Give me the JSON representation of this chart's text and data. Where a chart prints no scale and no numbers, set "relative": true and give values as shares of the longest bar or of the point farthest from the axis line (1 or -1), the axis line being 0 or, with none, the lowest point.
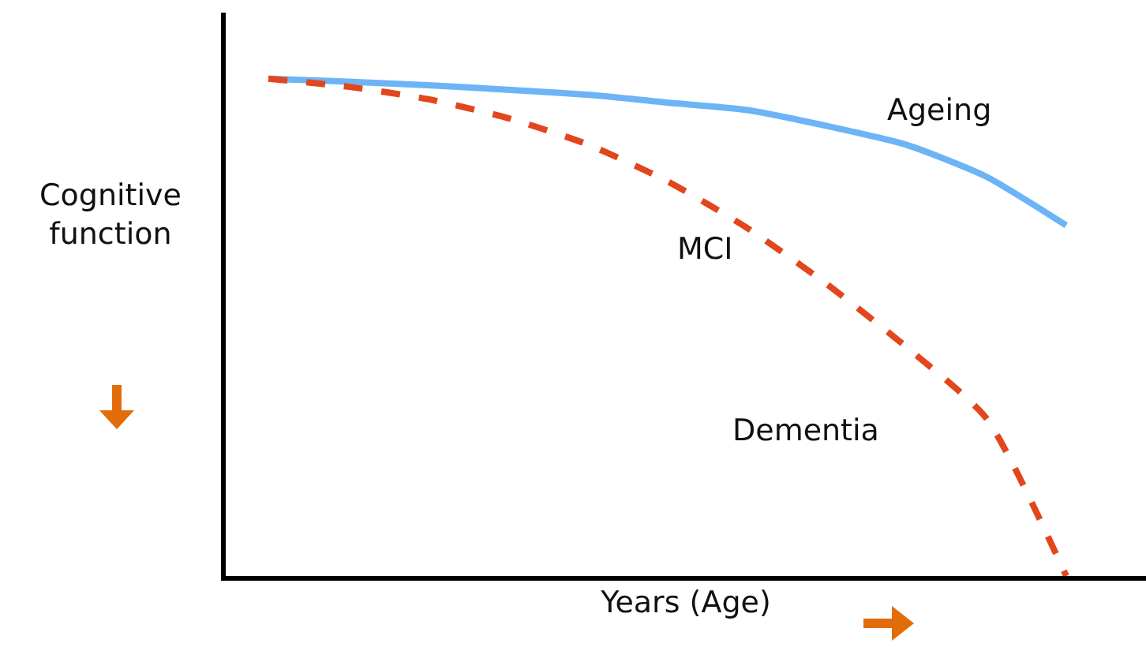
{
  "chart_data": {
    "type": "line",
    "relative": true,
    "xlabel": "Years (Age)",
    "ylabel": "Cognitive function",
    "categories": [
      null,
      null,
      null,
      null,
      null,
      null,
      null,
      null,
      null,
      null,
      null
    ],
    "series": [
      {
        "name": "Ageing",
        "color": "#6cb4f5",
        "line_style": "solid",
        "values": [
          1,
          0.994,
          0.987,
          0.978,
          0.968,
          0.952,
          0.937,
          0.905,
          0.867,
          0.803,
          0.705
        ]
      },
      {
        "color": "#e2461c",
        "line_style": "dashed",
        "values": [
          1,
          0.984,
          0.959,
          0.921,
          0.868,
          0.794,
          0.7,
          0.587,
          0.46,
          0.317,
          0
        ]
      }
    ],
    "annotations": [
      "MCI",
      "Dementia"
    ],
    "legend": false,
    "grid": false,
    "marker": "none"
  }
}
